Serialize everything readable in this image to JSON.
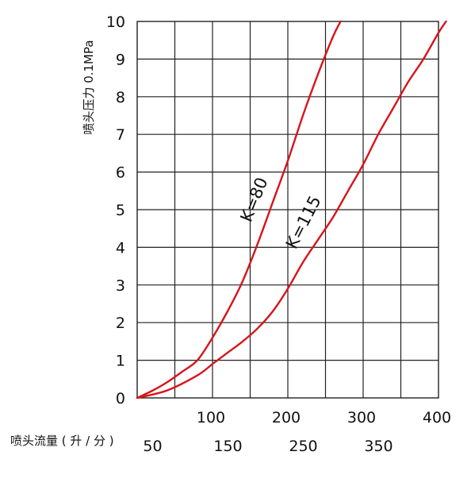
{
  "chart_data": {
    "type": "line",
    "title": "",
    "ylabel": "喷头压力 0.1MPa",
    "xlabel": "喷头流量 ( 升 / 分 )",
    "xlim": [
      0,
      400
    ],
    "ylim": [
      0,
      10
    ],
    "y_ticks": [
      "0",
      "1",
      "2",
      "3",
      "4",
      "5",
      "6",
      "7",
      "8",
      "9",
      "10"
    ],
    "x_ticks_upper": [
      {
        "value": 100,
        "label": "100"
      },
      {
        "value": 200,
        "label": "200"
      },
      {
        "value": 300,
        "label": "300"
      },
      {
        "value": 400,
        "label": "400"
      }
    ],
    "x_ticks_lower": [
      {
        "value": 50,
        "label": "50"
      },
      {
        "value": 150,
        "label": "150"
      },
      {
        "value": 250,
        "label": "250"
      },
      {
        "value": 350,
        "label": "350"
      }
    ],
    "grid": true,
    "line_color": "#d7141a",
    "series": [
      {
        "name": "K=80",
        "x": [
          0,
          20,
          40,
          60,
          80,
          100,
          120,
          140,
          160,
          180,
          200,
          220,
          240,
          260,
          270
        ],
        "y": [
          0,
          0.19,
          0.42,
          0.7,
          1.0,
          1.6,
          2.3,
          3.1,
          4.1,
          5.2,
          6.3,
          7.5,
          8.6,
          9.6,
          10.0
        ]
      },
      {
        "name": "K=115",
        "x": [
          0,
          40,
          80,
          100,
          120,
          140,
          160,
          180,
          200,
          220,
          240,
          260,
          280,
          300,
          320,
          340,
          360,
          380,
          400,
          410
        ],
        "y": [
          0,
          0.2,
          0.6,
          0.9,
          1.2,
          1.5,
          1.85,
          2.3,
          2.9,
          3.6,
          4.2,
          4.8,
          5.5,
          6.2,
          7.0,
          7.7,
          8.4,
          9.0,
          9.7,
          10.0
        ]
      }
    ]
  }
}
